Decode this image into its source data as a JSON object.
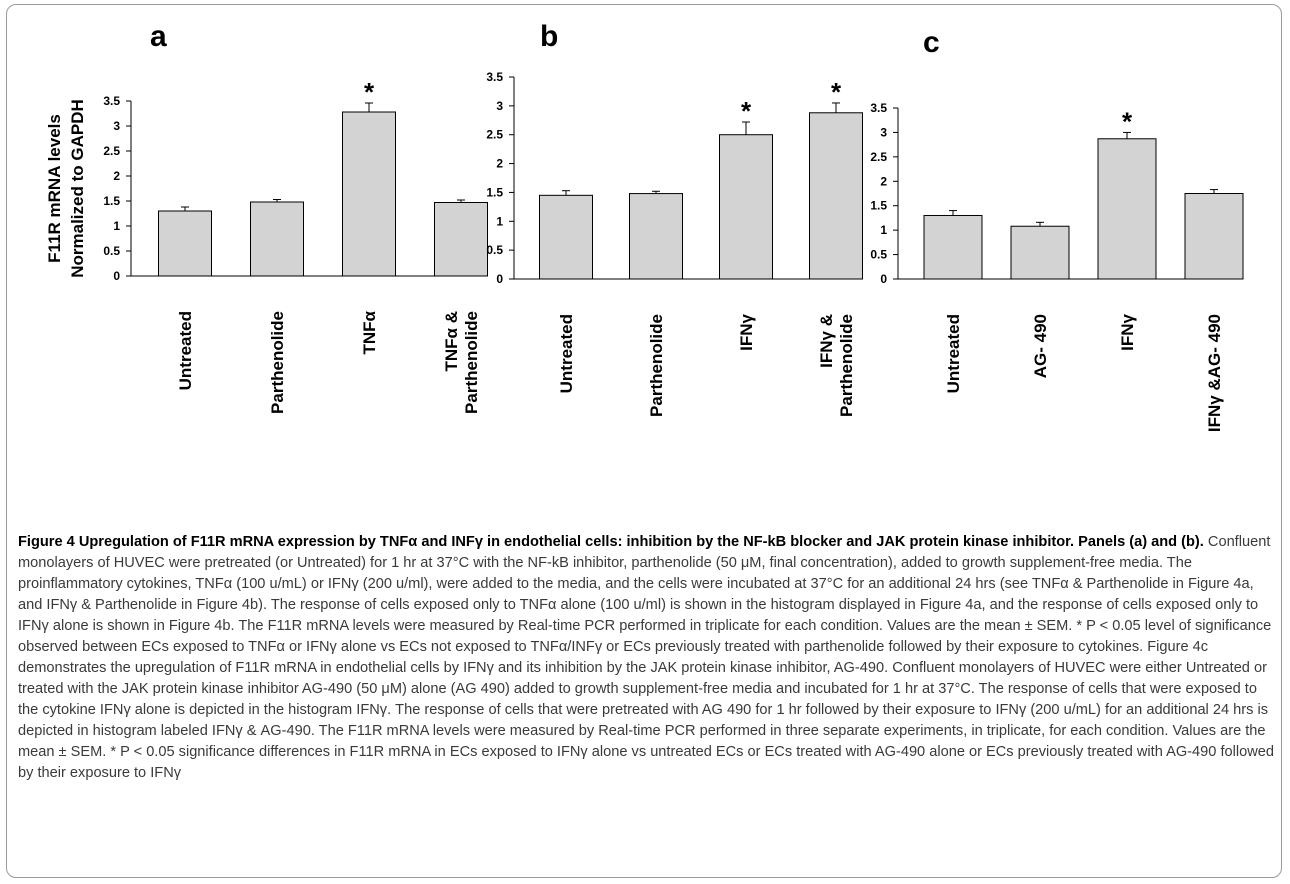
{
  "chart_data": [
    {
      "type": "bar",
      "panel": "a",
      "ylabel": [
        "F11R mRNA levels",
        "Normalized to GAPDH"
      ],
      "ylim": [
        0,
        3.5
      ],
      "yticks": [
        "0",
        "0.5",
        "1",
        "1.5",
        "2",
        "2.5",
        "3",
        "3.5"
      ],
      "categories": [
        [
          "Untreated"
        ],
        [
          "Parthenolide"
        ],
        [
          "TNFα"
        ],
        [
          "TNFα &",
          "Parthenolide"
        ]
      ],
      "values": [
        1.3,
        1.48,
        3.28,
        1.47
      ],
      "errors": [
        0.08,
        0.05,
        0.18,
        0.05
      ],
      "significant": [
        false,
        false,
        true,
        false
      ],
      "marker": "*",
      "bar_color": "#d3d3d3"
    },
    {
      "type": "bar",
      "panel": "b",
      "ylabel": "",
      "ylim": [
        0,
        3.5
      ],
      "yticks": [
        "0",
        "0.5",
        "1",
        "1.5",
        "2",
        "2.5",
        "3",
        "3.5"
      ],
      "categories": [
        [
          "Untreated"
        ],
        [
          "Parthenolide"
        ],
        [
          "IFNγ"
        ],
        [
          "IFNγ &",
          "Parthenolide"
        ]
      ],
      "values": [
        1.45,
        1.48,
        2.5,
        2.88
      ],
      "errors": [
        0.08,
        0.04,
        0.22,
        0.17
      ],
      "significant": [
        false,
        false,
        true,
        true
      ],
      "marker": "*",
      "bar_color": "#d3d3d3"
    },
    {
      "type": "bar",
      "panel": "c",
      "ylabel": "",
      "ylim": [
        0,
        3.5
      ],
      "yticks": [
        "0",
        "0.5",
        "1",
        "1.5",
        "2",
        "2.5",
        "3",
        "3.5"
      ],
      "categories": [
        [
          "Untreated"
        ],
        [
          "AG- 490"
        ],
        [
          "IFNγ"
        ],
        [
          "IFNγ &AG- 490"
        ]
      ],
      "values": [
        1.3,
        1.08,
        2.87,
        1.75
      ],
      "errors": [
        0.1,
        0.08,
        0.13,
        0.08
      ],
      "significant": [
        false,
        false,
        true,
        false
      ],
      "marker": "*",
      "bar_color": "#d3d3d3"
    }
  ],
  "caption": {
    "title": "Figure 4 Upregulation of F11R mRNA expression by TNFα and INFγ in endothelial cells: inhibition by the NF-kB blocker and JAK protein kinase inhibitor",
    "title_end": ".",
    "panels_label": "Panels (a) and (b)",
    "panels_label_end": ".",
    "body": " Confluent monolayers of HUVEC were pretreated (or Untreated) for 1 hr at 37°C with the NF-kB inhibitor, parthenolide (50 μM, final concentration), added to growth supplement-free media. The proinflammatory cytokines, TNFα (100 u/mL) or IFNγ (200 u/ml), were added to the media, and the cells were incubated at 37°C for an additional 24 hrs (see TNFα & Parthenolide in Figure 4a, and IFNγ & Parthenolide in Figure 4b). The response of cells exposed only to TNFα alone (100 u/ml) is shown in the histogram displayed in Figure 4a, and the response of cells exposed only to IFNγ alone is shown in Figure 4b. The F11R mRNA levels were measured by Real-time PCR performed in triplicate for each condition. Values are the mean ± SEM. * P < 0.05 level of significance observed between ECs exposed to TNFα or IFNγ alone vs ECs not exposed to TNFα/INFγ or ECs previously treated with parthenolide followed by their exposure to cytokines. Figure 4c demonstrates the upregulation of F11R mRNA in endothelial cells by IFNγ and its inhibition by the JAK protein kinase inhibitor, AG-490. Confluent monolayers of HUVEC were either Untreated or treated with the JAK protein kinase inhibitor AG-490 (50 μM) alone (AG 490) added to growth supplement-free media and incubated for 1 hr at 37°C. The response of cells that were exposed to the cytokine IFNγ alone is depicted in the histogram IFNγ. The response of cells that were pretreated with AG 490 for 1 hr followed by their exposure to IFNγ (200 u/mL) for an additional 24 hrs is depicted in histogram labeled IFNγ & AG-490. The F11R mRNA levels were measured by Real-time PCR performed in three separate experiments, in triplicate, for each condition. Values are the mean ± SEM. * P < 0.05 significance differences in F11R mRNA in ECs exposed to IFNγ alone vs untreated ECs or ECs treated with AG-490 alone or ECs previously treated with AG-490 followed by their exposure to IFNγ"
  }
}
